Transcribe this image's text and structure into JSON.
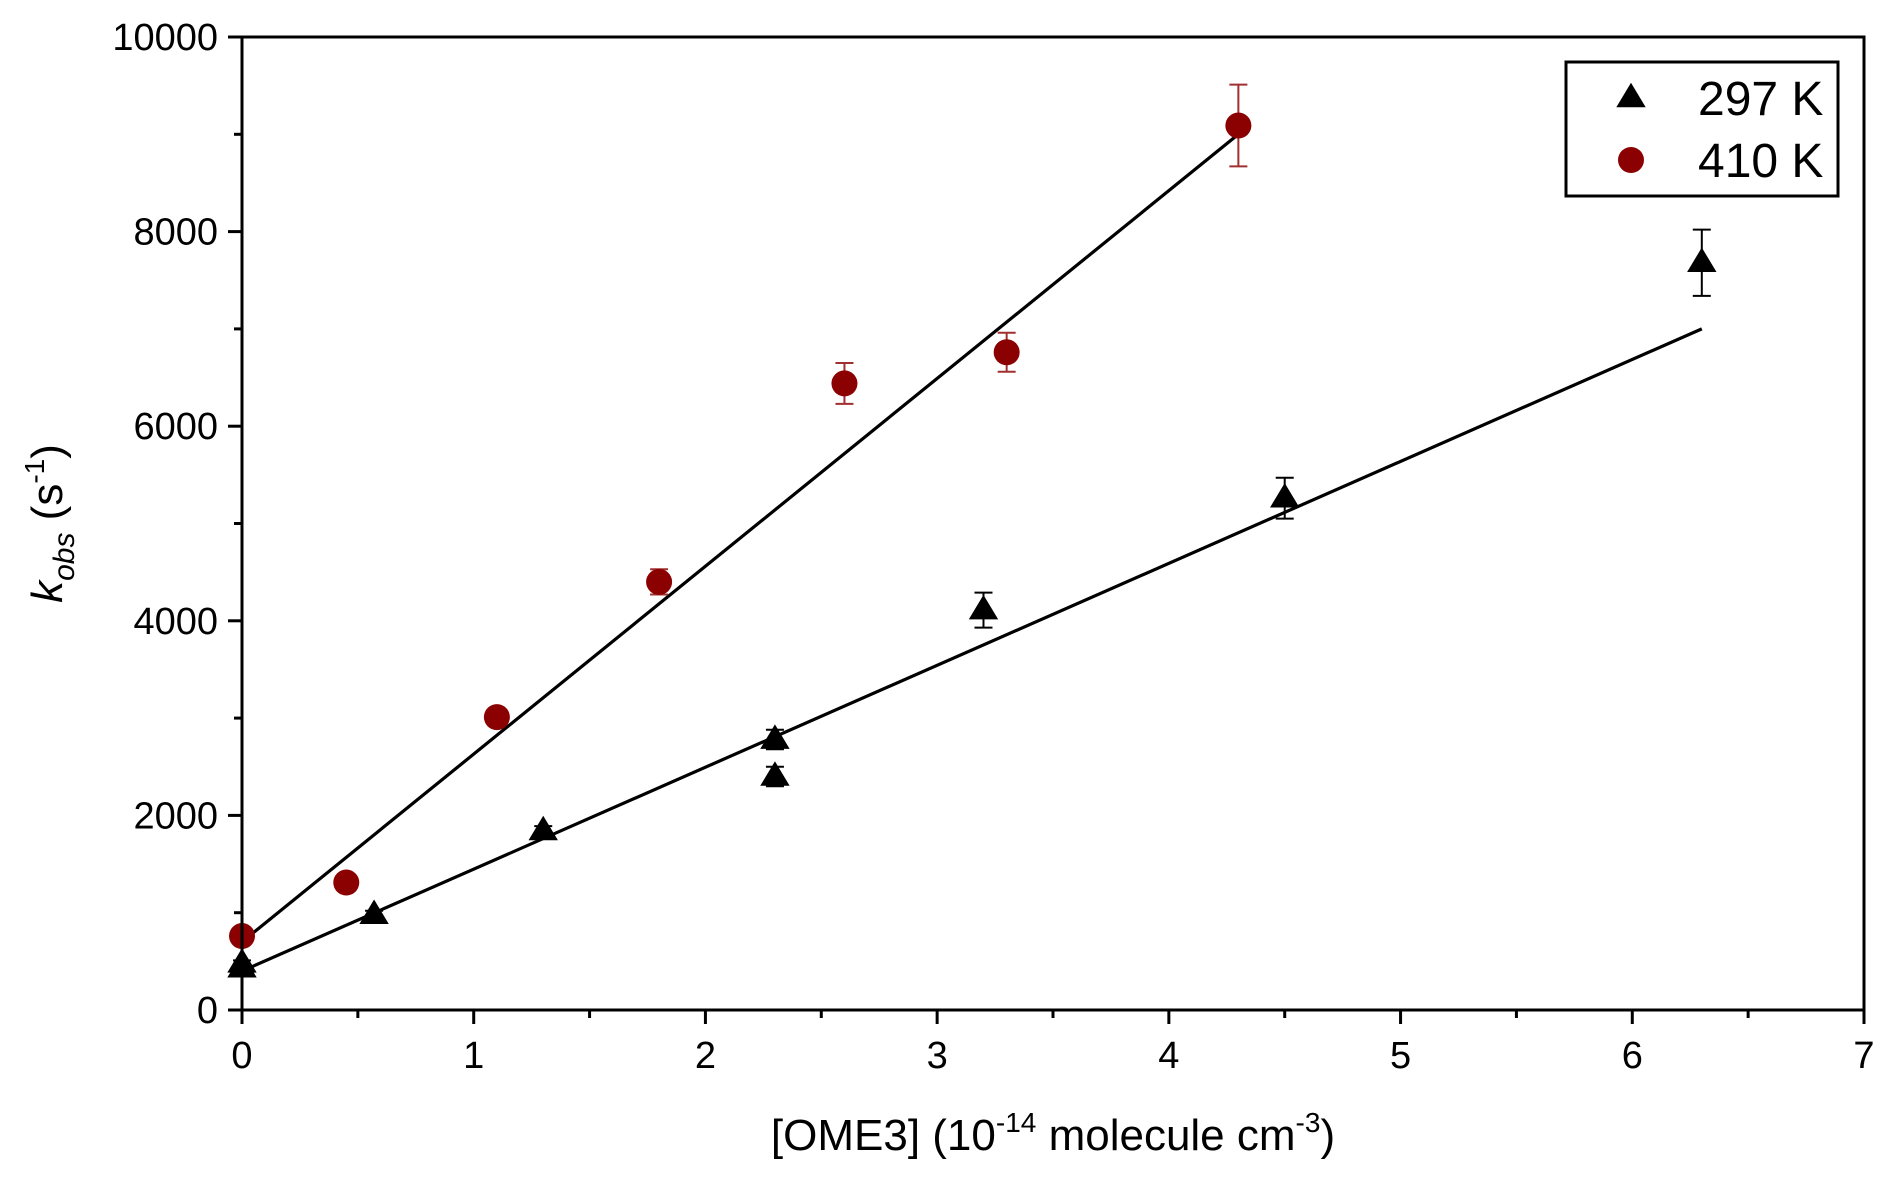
{
  "chart_data": {
    "type": "scatter",
    "xlabel": "[OME3] (10-14 molecule cm-3)",
    "xlabel_parts": {
      "pre": "[OME3] (10",
      "sup1": "-14",
      "mid": " molecule cm",
      "sup2": "-3",
      "post": ")"
    },
    "ylabel": "kobs (s-1)",
    "ylabel_parts": {
      "k": "k",
      "sub": "obs",
      "pre": " (s",
      "sup": "-1",
      "post": ")"
    },
    "xlim": [
      0,
      7
    ],
    "ylim": [
      0,
      10000
    ],
    "xticks": [
      "0",
      "1",
      "2",
      "3",
      "4",
      "5",
      "6",
      "7"
    ],
    "yticks": [
      "0",
      "2000",
      "4000",
      "6000",
      "8000",
      "10000"
    ],
    "legend_position": "top-right",
    "series": [
      {
        "name": "297 K",
        "marker": "triangle",
        "color": "#000000",
        "errorbar_color": "#000000",
        "points": [
          {
            "x": 0.0,
            "y": 430,
            "err": 30
          },
          {
            "x": 0.0,
            "y": 480,
            "err": 30
          },
          {
            "x": 0.57,
            "y": 980,
            "err": 40
          },
          {
            "x": 1.3,
            "y": 1840,
            "err": 50
          },
          {
            "x": 2.3,
            "y": 2780,
            "err": 100
          },
          {
            "x": 2.3,
            "y": 2400,
            "err": 100
          },
          {
            "x": 3.2,
            "y": 4110,
            "err": 180
          },
          {
            "x": 4.5,
            "y": 5260,
            "err": 210
          },
          {
            "x": 6.3,
            "y": 7680,
            "err": 340
          }
        ],
        "fit": {
          "x": [
            0,
            6.3
          ],
          "y": [
            400,
            7000
          ]
        }
      },
      {
        "name": "410 K",
        "marker": "circle",
        "color": "#8b0000",
        "errorbar_color": "#a03030",
        "points": [
          {
            "x": 0.0,
            "y": 760,
            "err": 40
          },
          {
            "x": 0.45,
            "y": 1310,
            "err": 40
          },
          {
            "x": 1.1,
            "y": 3010,
            "err": 80
          },
          {
            "x": 1.8,
            "y": 4400,
            "err": 130
          },
          {
            "x": 2.6,
            "y": 6440,
            "err": 210
          },
          {
            "x": 3.3,
            "y": 6760,
            "err": 200
          },
          {
            "x": 4.3,
            "y": 9090,
            "err": 420
          }
        ],
        "fit": {
          "x": [
            0,
            4.3
          ],
          "y": [
            700,
            9000
          ]
        }
      }
    ]
  }
}
